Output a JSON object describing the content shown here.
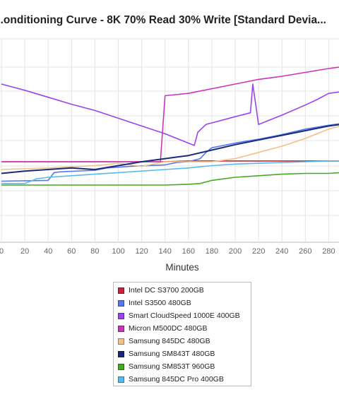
{
  "chart_data": {
    "type": "line",
    "title": "...onditioning Curve - 8K 70% Read 30% Write [Standard Devia...",
    "xlabel": "Minutes",
    "xlim": [
      0,
      290
    ],
    "x_ticks": [
      0,
      20,
      40,
      60,
      80,
      100,
      120,
      140,
      160,
      180,
      200,
      220,
      240,
      260,
      280
    ],
    "x_tick_labels": [
      "0",
      "20",
      "40",
      "60",
      "80",
      "100",
      "120",
      "140",
      "160",
      "180",
      "200",
      "220",
      "240",
      "260",
      "280"
    ],
    "grid": true,
    "legend_position": "bottom-center",
    "series": [
      {
        "name": "Intel DC S3700 200GB",
        "color": "#c8233a",
        "x": [
          0,
          40,
          80,
          120,
          140,
          160,
          200,
          240,
          280,
          290
        ],
        "y": [
          0.3,
          0.3,
          0.3,
          0.3,
          0.3,
          0.31,
          0.31,
          0.31,
          0.31,
          0.31
        ]
      },
      {
        "name": "Intel S3500 480GB",
        "color": "#5577ee",
        "x": [
          0,
          40,
          45,
          50,
          80,
          90,
          110,
          140,
          150,
          160,
          170,
          175,
          180,
          200,
          220,
          240,
          260,
          280,
          290
        ],
        "y": [
          0.05,
          0.06,
          0.16,
          0.17,
          0.19,
          0.22,
          0.24,
          0.26,
          0.29,
          0.3,
          0.34,
          0.42,
          0.48,
          0.54,
          0.59,
          0.65,
          0.72,
          0.77,
          0.79
        ]
      },
      {
        "name": "Smart CloudSpeed 1000E 400GB",
        "color": "#9944ee",
        "x": [
          0,
          20,
          40,
          60,
          80,
          100,
          120,
          140,
          150,
          160,
          165,
          168,
          175,
          180,
          200,
          213,
          215,
          220,
          240,
          260,
          270,
          280,
          290
        ],
        "y": [
          1.3,
          1.22,
          1.13,
          1.04,
          0.96,
          0.86,
          0.76,
          0.66,
          0.6,
          0.54,
          0.51,
          0.68,
          0.78,
          0.8,
          0.88,
          0.93,
          1.3,
          0.78,
          0.9,
          1.03,
          1.1,
          1.18,
          1.2
        ]
      },
      {
        "name": "Micron M500DC 480GB",
        "color": "#cc33bb",
        "x": [
          0,
          40,
          80,
          120,
          136,
          140,
          160,
          180,
          200,
          220,
          240,
          260,
          280,
          290
        ],
        "y": [
          0.3,
          0.3,
          0.3,
          0.3,
          0.3,
          1.15,
          1.18,
          1.24,
          1.3,
          1.36,
          1.4,
          1.45,
          1.5,
          1.52
        ]
      },
      {
        "name": "Samsung 845DC 480GB",
        "color": "#f0c28a",
        "x": [
          0,
          40,
          80,
          100,
          120,
          140,
          160,
          180,
          200,
          220,
          240,
          260,
          280,
          290
        ],
        "y": [
          0.2,
          0.22,
          0.25,
          0.28,
          0.24,
          0.3,
          0.3,
          0.3,
          0.34,
          0.42,
          0.5,
          0.6,
          0.72,
          0.76
        ]
      },
      {
        "name": "Samsung SM843T 480GB",
        "color": "#1a2a7a",
        "x": [
          0,
          20,
          40,
          60,
          80,
          100,
          120,
          140,
          160,
          180,
          200,
          220,
          240,
          260,
          280,
          290
        ],
        "y": [
          0.15,
          0.18,
          0.2,
          0.22,
          0.2,
          0.25,
          0.3,
          0.34,
          0.38,
          0.45,
          0.52,
          0.58,
          0.64,
          0.7,
          0.76,
          0.78
        ]
      },
      {
        "name": "Samsung SM853T 960GB",
        "color": "#44aa22",
        "x": [
          0,
          40,
          80,
          120,
          140,
          160,
          170,
          180,
          200,
          220,
          240,
          260,
          280,
          290
        ],
        "y": [
          0.0,
          0.0,
          0.0,
          0.0,
          0.0,
          0.01,
          0.02,
          0.06,
          0.1,
          0.12,
          0.14,
          0.15,
          0.15,
          0.16
        ]
      },
      {
        "name": "Samsung 845DC Pro 400GB",
        "color": "#55bbee",
        "x": [
          0,
          20,
          30,
          40,
          60,
          80,
          100,
          120,
          140,
          160,
          180,
          200,
          220,
          240,
          260,
          280,
          290
        ],
        "y": [
          0.02,
          0.02,
          0.08,
          0.1,
          0.12,
          0.14,
          0.16,
          0.18,
          0.2,
          0.22,
          0.25,
          0.27,
          0.28,
          0.29,
          0.3,
          0.31,
          0.31
        ]
      }
    ]
  }
}
